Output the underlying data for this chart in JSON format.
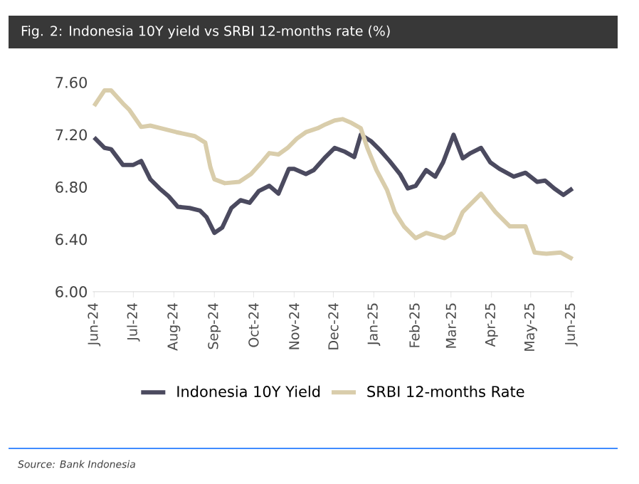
{
  "chart_data": {
    "type": "line",
    "title": "Fig. 2: Indonesia 10Y yield vs SRBI 12-months rate (%)",
    "annotations": [
      "Source: Bank Indonesia"
    ],
    "xlim": [
      "2024-05-31",
      "2025-06-03"
    ],
    "xticks": [
      {
        "value": "2024-06-01",
        "label": "Jun-24"
      },
      {
        "value": "2024-07-01",
        "label": "Jul-24"
      },
      {
        "value": "2024-08-01",
        "label": "Aug-24"
      },
      {
        "value": "2024-09-01",
        "label": "Sep-24"
      },
      {
        "value": "2024-10-01",
        "label": "Oct-24"
      },
      {
        "value": "2024-11-01",
        "label": "Nov-24"
      },
      {
        "value": "2024-12-01",
        "label": "Dec-24"
      },
      {
        "value": "2025-01-01",
        "label": "Jan-25"
      },
      {
        "value": "2025-02-01",
        "label": "Feb-25"
      },
      {
        "value": "2025-03-01",
        "label": "Mar-25"
      },
      {
        "value": "2025-04-01",
        "label": "Apr-25"
      },
      {
        "value": "2025-05-01",
        "label": "May-25"
      },
      {
        "value": "2025-06-01",
        "label": "Jun-25"
      }
    ],
    "ylim": [
      6.0,
      7.6
    ],
    "yticks": [
      {
        "value": 6.0,
        "label": "6.00"
      },
      {
        "value": 6.4,
        "label": "6.40"
      },
      {
        "value": 6.8,
        "label": "6.80"
      },
      {
        "value": 7.2,
        "label": "7.20"
      },
      {
        "value": 7.6,
        "label": "7.60"
      }
    ],
    "grid": false,
    "legend": "bottom",
    "marker": "none",
    "line_style": "solid",
    "series": [
      {
        "name": "Indonesia 10Y Yield",
        "color": "#4b4a5f",
        "x": [
          "2024-06-01",
          "2024-06-09",
          "2024-06-14",
          "2024-06-23",
          "2024-07-01",
          "2024-07-07",
          "2024-07-14",
          "2024-07-21",
          "2024-07-28",
          "2024-08-04",
          "2024-08-13",
          "2024-08-21",
          "2024-08-26",
          "2024-09-01",
          "2024-09-07",
          "2024-09-14",
          "2024-09-21",
          "2024-09-28",
          "2024-10-05",
          "2024-10-13",
          "2024-10-20",
          "2024-10-28",
          "2024-11-01",
          "2024-11-10",
          "2024-11-16",
          "2024-11-25",
          "2024-12-02",
          "2024-12-10",
          "2024-12-17",
          "2024-12-22",
          "2024-12-30",
          "2025-01-06",
          "2025-01-13",
          "2025-01-21",
          "2025-01-27",
          "2025-02-02",
          "2025-02-10",
          "2025-02-17",
          "2025-02-23",
          "2025-03-03",
          "2025-03-10",
          "2025-03-16",
          "2025-03-24",
          "2025-03-31",
          "2025-04-07",
          "2025-04-18",
          "2025-04-27",
          "2025-05-06",
          "2025-05-12",
          "2025-05-19",
          "2025-05-26",
          "2025-06-02"
        ],
        "values": [
          7.18,
          7.1,
          7.09,
          6.97,
          6.97,
          7.0,
          6.86,
          6.79,
          6.73,
          6.65,
          6.64,
          6.62,
          6.57,
          6.45,
          6.49,
          6.64,
          6.7,
          6.68,
          6.77,
          6.81,
          6.75,
          6.94,
          6.94,
          6.9,
          6.93,
          7.03,
          7.1,
          7.07,
          7.03,
          7.2,
          7.15,
          7.08,
          7.0,
          6.9,
          6.79,
          6.81,
          6.93,
          6.88,
          6.99,
          7.2,
          7.02,
          7.06,
          7.1,
          6.99,
          6.94,
          6.88,
          6.91,
          6.84,
          6.85,
          6.79,
          6.74,
          6.79
        ]
      },
      {
        "name": "SRBI 12-months Rate",
        "color": "#d9cdab",
        "x": [
          "2024-06-01",
          "2024-06-09",
          "2024-06-14",
          "2024-06-23",
          "2024-06-28",
          "2024-07-07",
          "2024-07-14",
          "2024-07-22",
          "2024-08-03",
          "2024-08-17",
          "2024-08-25",
          "2024-08-29",
          "2024-09-01",
          "2024-09-09",
          "2024-09-20",
          "2024-09-29",
          "2024-10-08",
          "2024-10-13",
          "2024-10-20",
          "2024-10-27",
          "2024-11-03",
          "2024-11-10",
          "2024-11-19",
          "2024-11-25",
          "2024-12-02",
          "2024-12-08",
          "2024-12-15",
          "2024-12-22",
          "2024-12-27",
          "2025-01-03",
          "2025-01-11",
          "2025-01-17",
          "2025-01-24",
          "2025-02-02",
          "2025-02-10",
          "2025-02-17",
          "2025-02-24",
          "2025-03-03",
          "2025-03-10",
          "2025-03-24",
          "2025-04-04",
          "2025-04-15",
          "2025-04-27",
          "2025-05-04",
          "2025-05-13",
          "2025-05-24",
          "2025-06-02"
        ],
        "values": [
          7.42,
          7.54,
          7.54,
          7.44,
          7.39,
          7.26,
          7.27,
          7.25,
          7.22,
          7.19,
          7.14,
          6.95,
          6.86,
          6.83,
          6.84,
          6.9,
          7.0,
          7.06,
          7.05,
          7.1,
          7.17,
          7.22,
          7.25,
          7.28,
          7.31,
          7.32,
          7.29,
          7.25,
          7.1,
          6.93,
          6.78,
          6.61,
          6.5,
          6.41,
          6.45,
          6.43,
          6.41,
          6.45,
          6.61,
          6.75,
          6.61,
          6.5,
          6.5,
          6.3,
          6.29,
          6.3,
          6.25
        ]
      }
    ]
  }
}
